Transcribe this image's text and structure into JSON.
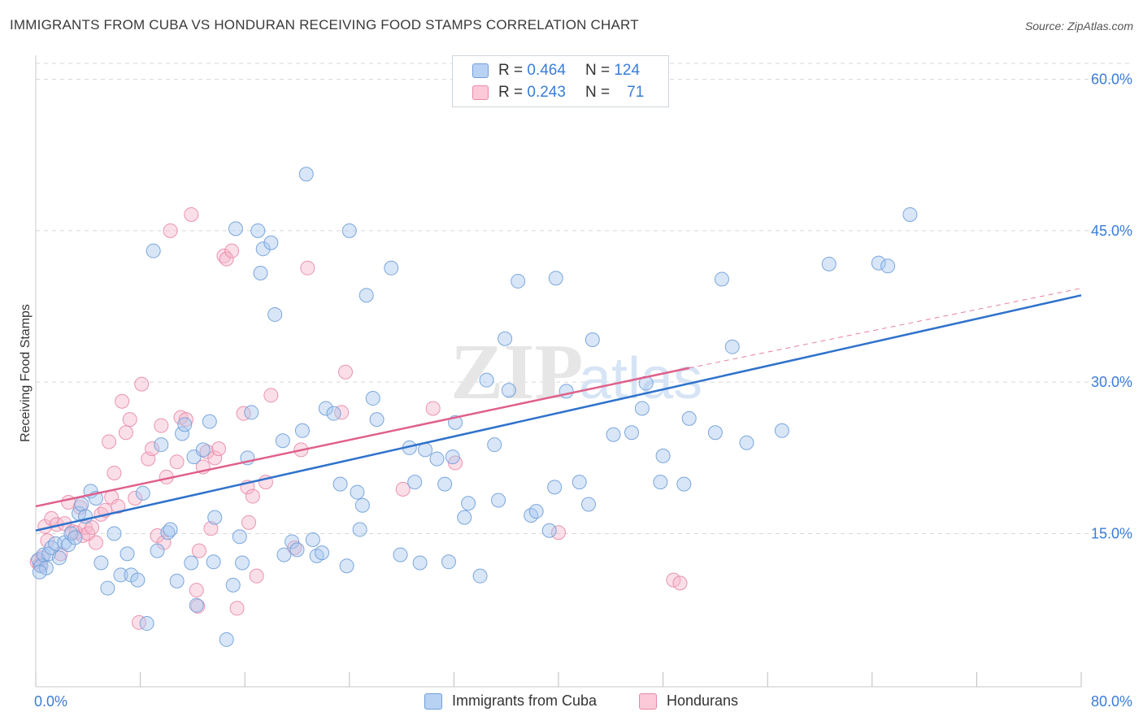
{
  "title": "IMMIGRANTS FROM CUBA VS HONDURAN RECEIVING FOOD STAMPS CORRELATION CHART",
  "source": "Source: ZipAtlas.com",
  "watermark": {
    "zip": "ZIP",
    "atlas": "atlas"
  },
  "legend": {
    "rows": [
      {
        "r_label": "R =",
        "r_value": "0.464",
        "n_label": "N =",
        "n_value": "124"
      },
      {
        "r_label": "R =",
        "r_value": "0.243",
        "n_label": "N =",
        "n_value": "71"
      }
    ]
  },
  "colors": {
    "cuba_fill": "#a8c8f0",
    "cuba_stroke": "#6f9fd8",
    "cuba_line": "#2f72cc",
    "hond_fill": "#f6b8cc",
    "hond_stroke": "#e889a7",
    "hond_line": "#e0608a",
    "axis_text": "#3b7dd8",
    "grid": "#d8d8d8"
  },
  "chart_data": {
    "type": "scatter",
    "xlabel": "",
    "ylabel": "Receiving Food Stamps",
    "xlim": [
      0,
      80
    ],
    "ylim": [
      0,
      65
    ],
    "x_tick_labels": [
      "0.0%",
      "80.0%"
    ],
    "y_ticks": [
      15,
      30,
      45,
      60
    ],
    "y_tick_labels": [
      "15.0%",
      "30.0%",
      "45.0%",
      "60.0%"
    ],
    "grid": "horizontal dashed",
    "legend_position": "top-center",
    "series": [
      {
        "name": "Immigrants from Cuba",
        "R": 0.464,
        "N": 124,
        "trend": {
          "x": [
            0,
            80
          ],
          "y": [
            15.3,
            38.6
          ]
        },
        "points": [
          [
            0.2,
            12.4
          ],
          [
            0.4,
            11.8
          ],
          [
            0.6,
            12.9
          ],
          [
            0.8,
            11.6
          ],
          [
            1.0,
            13.0
          ],
          [
            1.2,
            13.6
          ],
          [
            1.5,
            14.0
          ],
          [
            1.8,
            12.6
          ],
          [
            2.2,
            14.1
          ],
          [
            2.5,
            13.9
          ],
          [
            2.7,
            15.0
          ],
          [
            3.0,
            14.6
          ],
          [
            3.3,
            17.0
          ],
          [
            3.5,
            17.9
          ],
          [
            3.8,
            16.7
          ],
          [
            4.2,
            19.2
          ],
          [
            4.6,
            18.5
          ],
          [
            5.0,
            12.1
          ],
          [
            5.5,
            9.6
          ],
          [
            6.0,
            15.0
          ],
          [
            6.5,
            10.9
          ],
          [
            7.0,
            13.0
          ],
          [
            7.3,
            10.9
          ],
          [
            7.8,
            10.4
          ],
          [
            8.2,
            19.0
          ],
          [
            8.5,
            6.1
          ],
          [
            9.0,
            43.0
          ],
          [
            9.3,
            13.3
          ],
          [
            9.6,
            23.8
          ],
          [
            10.1,
            15.1
          ],
          [
            10.3,
            15.4
          ],
          [
            10.8,
            10.3
          ],
          [
            11.2,
            24.9
          ],
          [
            11.4,
            25.8
          ],
          [
            11.9,
            12.1
          ],
          [
            12.1,
            22.6
          ],
          [
            12.3,
            7.9
          ],
          [
            12.8,
            23.3
          ],
          [
            13.3,
            26.1
          ],
          [
            13.6,
            12.2
          ],
          [
            13.7,
            16.6
          ],
          [
            14.6,
            4.5
          ],
          [
            15.1,
            9.9
          ],
          [
            15.3,
            45.2
          ],
          [
            15.6,
            14.7
          ],
          [
            15.8,
            12.1
          ],
          [
            16.2,
            22.5
          ],
          [
            16.5,
            27.0
          ],
          [
            17.0,
            45.0
          ],
          [
            17.2,
            40.8
          ],
          [
            17.4,
            43.2
          ],
          [
            18.0,
            43.8
          ],
          [
            18.3,
            36.7
          ],
          [
            18.9,
            24.2
          ],
          [
            19.0,
            12.9
          ],
          [
            19.6,
            14.2
          ],
          [
            20.0,
            13.4
          ],
          [
            20.4,
            25.2
          ],
          [
            20.7,
            50.6
          ],
          [
            21.2,
            14.4
          ],
          [
            21.5,
            12.8
          ],
          [
            21.9,
            13.1
          ],
          [
            22.2,
            27.4
          ],
          [
            22.8,
            26.9
          ],
          [
            23.3,
            19.9
          ],
          [
            23.8,
            11.8
          ],
          [
            24.0,
            45.0
          ],
          [
            24.6,
            19.1
          ],
          [
            24.8,
            15.4
          ],
          [
            25.0,
            17.8
          ],
          [
            25.3,
            38.6
          ],
          [
            25.8,
            28.4
          ],
          [
            26.1,
            26.3
          ],
          [
            27.2,
            41.3
          ],
          [
            27.9,
            12.9
          ],
          [
            28.6,
            23.5
          ],
          [
            29.0,
            20.1
          ],
          [
            29.4,
            12.1
          ],
          [
            29.8,
            23.3
          ],
          [
            30.7,
            22.4
          ],
          [
            31.3,
            19.9
          ],
          [
            31.6,
            12.2
          ],
          [
            31.9,
            22.6
          ],
          [
            32.1,
            26.0
          ],
          [
            32.8,
            16.6
          ],
          [
            33.1,
            18.0
          ],
          [
            34.0,
            10.8
          ],
          [
            34.5,
            30.2
          ],
          [
            35.1,
            23.8
          ],
          [
            35.4,
            18.3
          ],
          [
            35.9,
            34.3
          ],
          [
            36.2,
            29.2
          ],
          [
            36.9,
            40.0
          ],
          [
            37.9,
            16.8
          ],
          [
            38.3,
            17.2
          ],
          [
            39.3,
            15.3
          ],
          [
            39.7,
            19.6
          ],
          [
            39.8,
            40.3
          ],
          [
            40.6,
            29.1
          ],
          [
            41.6,
            20.1
          ],
          [
            42.3,
            17.9
          ],
          [
            42.6,
            34.2
          ],
          [
            44.2,
            24.8
          ],
          [
            45.6,
            25.0
          ],
          [
            46.4,
            27.4
          ],
          [
            46.7,
            29.9
          ],
          [
            47.8,
            20.1
          ],
          [
            48.0,
            22.7
          ],
          [
            49.6,
            19.9
          ],
          [
            50.0,
            26.4
          ],
          [
            52.0,
            25.0
          ],
          [
            52.5,
            40.2
          ],
          [
            53.3,
            33.5
          ],
          [
            54.4,
            24.0
          ],
          [
            57.1,
            25.2
          ],
          [
            60.7,
            41.7
          ],
          [
            64.5,
            41.8
          ],
          [
            65.2,
            41.5
          ],
          [
            66.9,
            46.6
          ],
          [
            0.3,
            11.2
          ]
        ]
      },
      {
        "name": "Hondurans",
        "R": 0.243,
        "N": 71,
        "trend": {
          "x": [
            0,
            50
          ],
          "y": [
            17.7,
            31.4
          ]
        },
        "trend_extension": {
          "x": [
            50,
            80
          ],
          "y": [
            31.4,
            39.3
          ]
        },
        "points": [
          [
            0.1,
            12.2
          ],
          [
            0.3,
            11.9
          ],
          [
            0.5,
            12.6
          ],
          [
            0.7,
            15.7
          ],
          [
            0.9,
            14.3
          ],
          [
            1.2,
            16.5
          ],
          [
            1.6,
            15.9
          ],
          [
            1.9,
            13.0
          ],
          [
            2.2,
            16.0
          ],
          [
            2.5,
            18.1
          ],
          [
            2.8,
            15.2
          ],
          [
            3.1,
            15.1
          ],
          [
            3.4,
            17.6
          ],
          [
            3.6,
            14.8
          ],
          [
            3.8,
            15.6
          ],
          [
            4.0,
            15.0
          ],
          [
            4.3,
            15.6
          ],
          [
            4.6,
            14.1
          ],
          [
            5.0,
            16.9
          ],
          [
            5.3,
            17.3
          ],
          [
            5.6,
            24.1
          ],
          [
            5.8,
            18.6
          ],
          [
            6.0,
            21.0
          ],
          [
            6.3,
            17.7
          ],
          [
            6.6,
            28.1
          ],
          [
            6.9,
            25.0
          ],
          [
            7.2,
            26.3
          ],
          [
            7.6,
            18.5
          ],
          [
            7.9,
            6.2
          ],
          [
            8.1,
            29.8
          ],
          [
            8.6,
            22.4
          ],
          [
            8.9,
            23.4
          ],
          [
            9.3,
            14.8
          ],
          [
            9.6,
            25.7
          ],
          [
            9.8,
            14.1
          ],
          [
            10.0,
            20.6
          ],
          [
            10.3,
            45.0
          ],
          [
            10.8,
            22.1
          ],
          [
            11.1,
            26.5
          ],
          [
            11.5,
            26.3
          ],
          [
            11.9,
            46.6
          ],
          [
            12.3,
            9.4
          ],
          [
            12.4,
            7.8
          ],
          [
            12.5,
            13.3
          ],
          [
            12.8,
            21.6
          ],
          [
            13.1,
            23.1
          ],
          [
            13.4,
            15.5
          ],
          [
            13.7,
            22.5
          ],
          [
            14.0,
            23.4
          ],
          [
            14.4,
            42.5
          ],
          [
            14.6,
            42.2
          ],
          [
            15.0,
            43.0
          ],
          [
            15.4,
            7.6
          ],
          [
            15.9,
            26.9
          ],
          [
            16.2,
            19.6
          ],
          [
            16.3,
            16.1
          ],
          [
            16.6,
            18.7
          ],
          [
            16.9,
            10.8
          ],
          [
            17.6,
            20.1
          ],
          [
            18.0,
            28.7
          ],
          [
            19.8,
            13.6
          ],
          [
            20.3,
            23.3
          ],
          [
            20.8,
            41.3
          ],
          [
            23.7,
            31.0
          ],
          [
            23.4,
            27.0
          ],
          [
            28.1,
            19.4
          ],
          [
            30.4,
            27.4
          ],
          [
            32.1,
            22.0
          ],
          [
            40.0,
            15.1
          ],
          [
            48.8,
            10.4
          ],
          [
            49.3,
            10.1
          ]
        ]
      }
    ]
  },
  "bottom_legend": {
    "items": [
      "Immigrants from Cuba",
      "Hondurans"
    ]
  }
}
